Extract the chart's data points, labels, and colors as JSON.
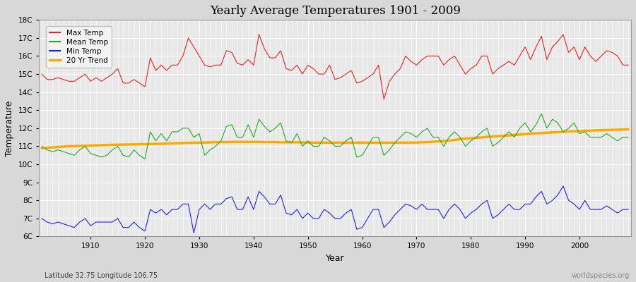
{
  "title": "Yearly Average Temperatures 1901 - 2009",
  "xlabel": "Year",
  "ylabel": "Temperature",
  "lat_lon_label": "Latitude 32.75 Longitude 106.75",
  "watermark": "worldspecies.org",
  "bg_color": "#d8d8d8",
  "plot_bg_color": "#e8e8e8",
  "grid_color": "#ffffff",
  "ylim": [
    6,
    18
  ],
  "yticks": [
    6,
    7,
    8,
    9,
    10,
    11,
    12,
    13,
    14,
    15,
    16,
    17,
    18
  ],
  "ytick_labels": [
    "6C",
    "7C",
    "8C",
    "9C",
    "10C",
    "11C",
    "12C",
    "13C",
    "14C",
    "15C",
    "16C",
    "17C",
    "18C"
  ],
  "xstart": 1901,
  "xend": 2009,
  "colors": {
    "max": "#ee2222",
    "mean": "#22aa22",
    "min": "#2222ee",
    "trend": "#ffaa00"
  },
  "max_temps": [
    15.0,
    14.7,
    14.7,
    14.8,
    14.7,
    14.6,
    14.6,
    14.8,
    15.0,
    14.6,
    14.8,
    14.6,
    14.8,
    15.0,
    15.3,
    14.5,
    14.5,
    14.7,
    14.5,
    14.3,
    15.9,
    15.2,
    15.5,
    15.2,
    15.5,
    15.5,
    16.0,
    17.0,
    16.5,
    16.0,
    15.5,
    15.4,
    15.5,
    15.5,
    16.3,
    16.2,
    15.6,
    15.5,
    15.8,
    15.5,
    17.2,
    16.4,
    15.9,
    15.9,
    16.3,
    15.3,
    15.2,
    15.5,
    15.0,
    15.5,
    15.3,
    15.0,
    15.0,
    15.5,
    14.7,
    14.8,
    15.0,
    15.2,
    14.5,
    14.6,
    14.8,
    15.0,
    15.5,
    13.6,
    14.6,
    15.0,
    15.3,
    16.0,
    15.7,
    15.5,
    15.8,
    16.0,
    16.0,
    16.0,
    15.5,
    15.8,
    16.0,
    15.5,
    15.0,
    15.3,
    15.5,
    16.0,
    16.0,
    15.0,
    15.3,
    15.5,
    15.7,
    15.5,
    16.0,
    16.5,
    15.8,
    16.5,
    17.1,
    15.8,
    16.5,
    16.8,
    17.2,
    16.2,
    16.5,
    15.8,
    16.5,
    16.0,
    15.7,
    16.0,
    16.3,
    16.2,
    16.0,
    15.5,
    15.5
  ],
  "mean_temps": [
    11.0,
    10.8,
    10.7,
    10.8,
    10.7,
    10.6,
    10.5,
    10.8,
    11.0,
    10.6,
    10.5,
    10.4,
    10.5,
    10.8,
    11.0,
    10.5,
    10.4,
    10.8,
    10.5,
    10.3,
    11.8,
    11.3,
    11.7,
    11.3,
    11.8,
    11.8,
    12.0,
    12.0,
    11.5,
    11.7,
    10.5,
    10.8,
    11.0,
    11.3,
    12.1,
    12.2,
    11.5,
    11.5,
    12.2,
    11.5,
    12.5,
    12.1,
    11.8,
    12.0,
    12.3,
    11.3,
    11.2,
    11.7,
    11.0,
    11.3,
    11.0,
    11.0,
    11.5,
    11.3,
    11.0,
    11.0,
    11.3,
    11.5,
    10.4,
    10.5,
    11.0,
    11.5,
    11.5,
    10.5,
    10.8,
    11.2,
    11.5,
    11.8,
    11.7,
    11.5,
    11.8,
    12.0,
    11.5,
    11.5,
    11.0,
    11.5,
    11.8,
    11.5,
    11.0,
    11.3,
    11.5,
    11.8,
    12.0,
    11.0,
    11.2,
    11.5,
    11.8,
    11.5,
    12.0,
    12.3,
    11.8,
    12.2,
    12.8,
    12.0,
    12.5,
    12.3,
    11.8,
    12.0,
    12.3,
    11.7,
    11.8,
    11.5,
    11.5,
    11.5,
    11.7,
    11.5,
    11.3,
    11.5,
    11.5
  ],
  "min_temps": [
    7.0,
    6.8,
    6.7,
    6.8,
    6.7,
    6.6,
    6.5,
    6.8,
    7.0,
    6.6,
    6.8,
    6.8,
    6.8,
    6.8,
    7.0,
    6.5,
    6.5,
    6.8,
    6.5,
    6.3,
    7.5,
    7.3,
    7.5,
    7.2,
    7.5,
    7.5,
    7.8,
    7.8,
    6.2,
    7.5,
    7.8,
    7.5,
    7.8,
    7.8,
    8.1,
    8.2,
    7.5,
    7.5,
    8.2,
    7.5,
    8.5,
    8.2,
    7.8,
    7.8,
    8.3,
    7.3,
    7.2,
    7.5,
    7.0,
    7.3,
    7.0,
    7.0,
    7.5,
    7.3,
    7.0,
    7.0,
    7.3,
    7.5,
    6.4,
    6.5,
    7.0,
    7.5,
    7.5,
    6.5,
    6.8,
    7.2,
    7.5,
    7.8,
    7.7,
    7.5,
    7.8,
    7.5,
    7.5,
    7.5,
    7.0,
    7.5,
    7.8,
    7.5,
    7.0,
    7.3,
    7.5,
    7.8,
    8.0,
    7.0,
    7.2,
    7.5,
    7.8,
    7.5,
    7.5,
    7.8,
    7.8,
    8.2,
    8.5,
    7.8,
    8.0,
    8.3,
    8.8,
    8.0,
    7.8,
    7.5,
    8.0,
    7.5,
    7.5,
    7.5,
    7.7,
    7.5,
    7.3,
    7.5,
    7.5
  ],
  "trend_temps": [
    10.9,
    10.92,
    10.94,
    10.96,
    10.98,
    11.0,
    11.01,
    11.02,
    11.03,
    11.04,
    11.05,
    11.06,
    11.07,
    11.08,
    11.09,
    11.09,
    11.1,
    11.1,
    11.11,
    11.11,
    11.12,
    11.13,
    11.14,
    11.15,
    11.16,
    11.17,
    11.18,
    11.19,
    11.2,
    11.2,
    11.21,
    11.22,
    11.23,
    11.23,
    11.23,
    11.24,
    11.24,
    11.24,
    11.24,
    11.24,
    11.24,
    11.23,
    11.23,
    11.23,
    11.22,
    11.22,
    11.22,
    11.22,
    11.21,
    11.21,
    11.2,
    11.2,
    11.2,
    11.2,
    11.2,
    11.2,
    11.2,
    11.2,
    11.2,
    11.2,
    11.2,
    11.2,
    11.2,
    11.2,
    11.2,
    11.2,
    11.2,
    11.2,
    11.2,
    11.21,
    11.22,
    11.23,
    11.25,
    11.27,
    11.29,
    11.31,
    11.35,
    11.39,
    11.42,
    11.44,
    11.47,
    11.49,
    11.52,
    11.54,
    11.56,
    11.58,
    11.6,
    11.63,
    11.65,
    11.67,
    11.7,
    11.72,
    11.73,
    11.75,
    11.77,
    11.78,
    11.8,
    11.82,
    11.83,
    11.84,
    11.86,
    11.87,
    11.88,
    11.89,
    11.9,
    11.91,
    11.92,
    11.93,
    11.94
  ]
}
